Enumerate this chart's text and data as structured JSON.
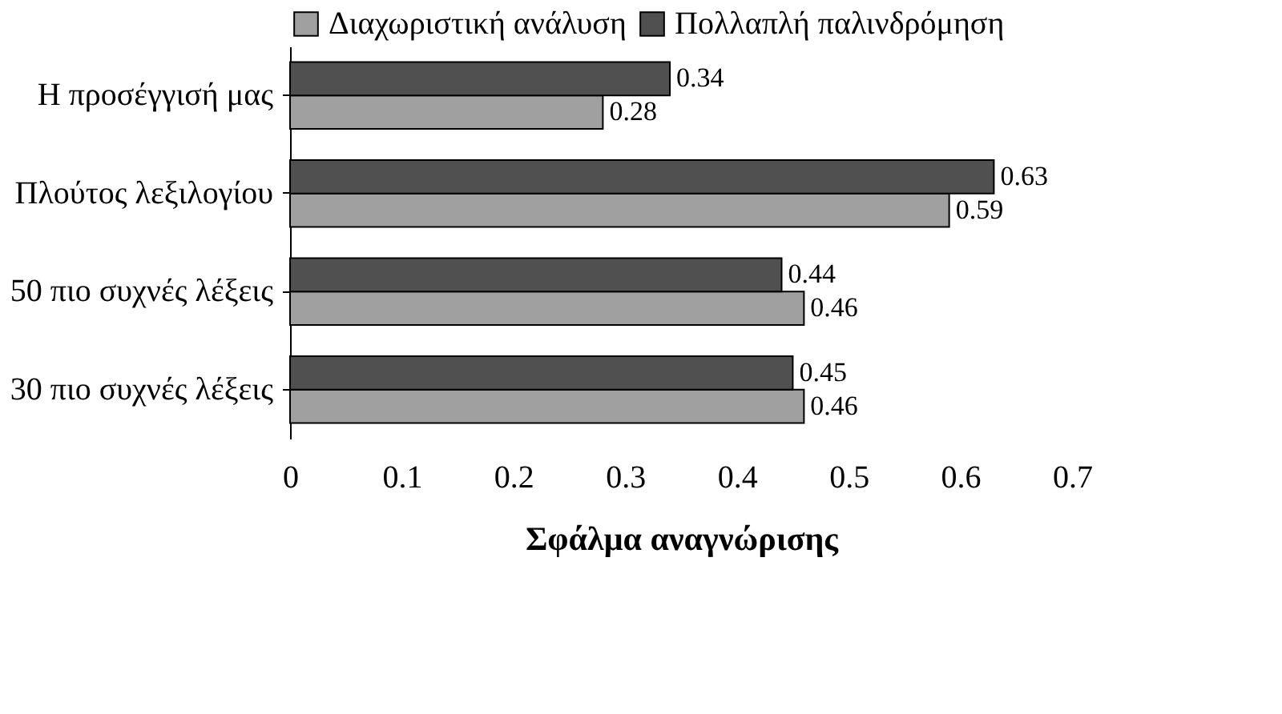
{
  "chart_data": {
    "type": "bar",
    "orientation": "horizontal",
    "xlabel": "Σφάλμα αναγνώρισης",
    "categories": [
      "Η προσέγγισή μας",
      "Πλούτος λεξιλογίου",
      "50 πιο συχνές λέξεις",
      "30 πιο συχνές λέξεις"
    ],
    "series": [
      {
        "name": "Διαχωριστική ανάλυση",
        "color": "#a0a0a0",
        "values": [
          0.28,
          0.59,
          0.46,
          0.46
        ]
      },
      {
        "name": "Πολλαπλή παλινδρόμηση",
        "color": "#505050",
        "values": [
          0.34,
          0.63,
          0.44,
          0.45
        ]
      }
    ],
    "xlim": [
      0,
      0.7
    ],
    "xticks": [
      0,
      0.1,
      0.2,
      0.3,
      0.4,
      0.5,
      0.6,
      0.7
    ],
    "grid": false,
    "legend": "top",
    "data_labels": true
  }
}
